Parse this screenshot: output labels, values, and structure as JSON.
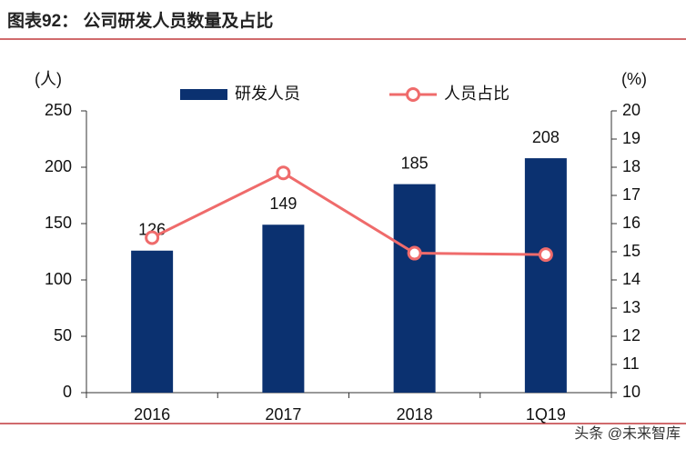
{
  "chart_data": {
    "type": "bar",
    "title": "图表92：  公司研发人员数量及占比",
    "y_label": "(人)",
    "y2_label": "(%)",
    "categories": [
      "2016",
      "2017",
      "2018",
      "1Q19"
    ],
    "series": [
      {
        "name": "研发人员",
        "type": "bar",
        "color": "#0b3170",
        "values": [
          126,
          149,
          185,
          208
        ]
      },
      {
        "name": "人员占比",
        "type": "line",
        "axis": "y2",
        "color": "#ef6b6b",
        "values": [
          15.5,
          17.8,
          14.95,
          14.9
        ]
      }
    ],
    "ylim": [
      0,
      250
    ],
    "yticks": [
      0,
      50,
      100,
      150,
      200,
      250
    ],
    "y2lim": [
      10,
      20
    ],
    "y2ticks": [
      10,
      11,
      12,
      13,
      14,
      15,
      16,
      17,
      18,
      19,
      20
    ],
    "grid": false,
    "watermark": "头条 @未来智库"
  }
}
